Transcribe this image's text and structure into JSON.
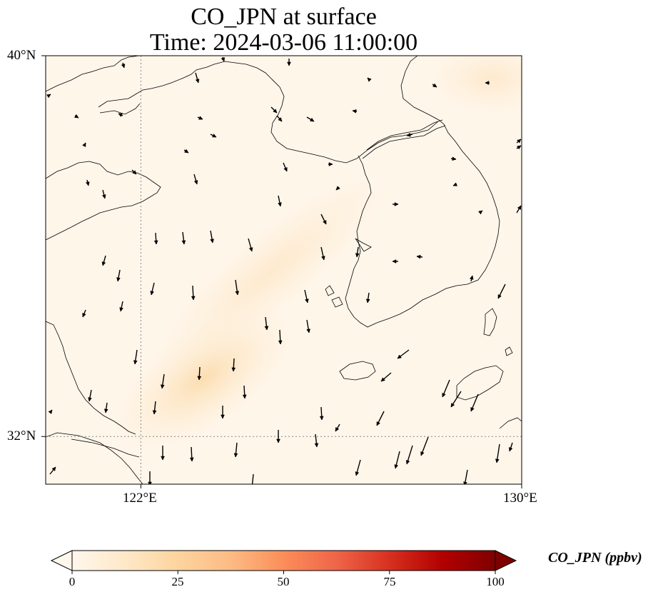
{
  "title": {
    "line1": "CO_JPN at surface",
    "line2": "Time: 2024-03-06 11:00:00"
  },
  "map": {
    "lon_range": [
      120,
      130
    ],
    "lat_range": [
      31,
      40
    ],
    "gridlines": {
      "longitudes": [
        122
      ],
      "latitudes": [
        32
      ]
    },
    "lat_ticks": [
      {
        "value": 40,
        "label": "40°N"
      },
      {
        "value": 32,
        "label": "32°N"
      }
    ],
    "lon_ticks": [
      {
        "value": 122,
        "label": "122°E"
      },
      {
        "value": 130,
        "label": "130°E"
      }
    ],
    "field_variable": "CO_JPN",
    "field_range_ppbv": [
      0,
      20
    ],
    "colors": {
      "background_low": "#fff7ec",
      "coastline": "#000000",
      "wind_arrow": "#000000"
    }
  },
  "colorbar": {
    "label": "CO_JPN (ppbv)",
    "min": 0,
    "max": 100,
    "ticks": [
      {
        "value": 0,
        "label": "0"
      },
      {
        "value": 25,
        "label": "25"
      },
      {
        "value": 50,
        "label": "50"
      },
      {
        "value": 75,
        "label": "75"
      },
      {
        "value": 100,
        "label": "100"
      }
    ],
    "colormap": "OrRd",
    "stops": [
      "#fff7ec",
      "#fee8c8",
      "#fdd49e",
      "#fdbb84",
      "#fc8d59",
      "#ef6548",
      "#d7301f",
      "#b30000",
      "#7f0000"
    ],
    "extend": "both"
  }
}
